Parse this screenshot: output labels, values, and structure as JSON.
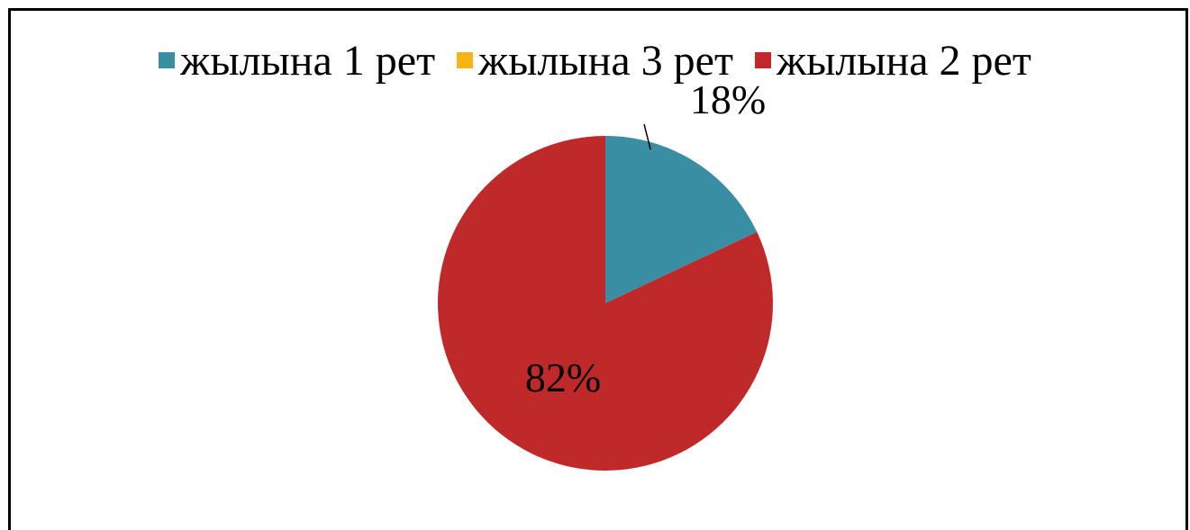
{
  "chart_data": {
    "type": "pie",
    "title": "",
    "legend_position": "top",
    "slices": [
      {
        "label": "жылына 1 рет",
        "value": 18,
        "display": "18%",
        "color": "#3a8ea3"
      },
      {
        "label": "жылына 3 рет",
        "value": 0,
        "display": "",
        "color": "#f5b414"
      },
      {
        "label": "жылына 2 рет",
        "value": 82,
        "display": "82%",
        "color": "#c0292a"
      }
    ]
  }
}
